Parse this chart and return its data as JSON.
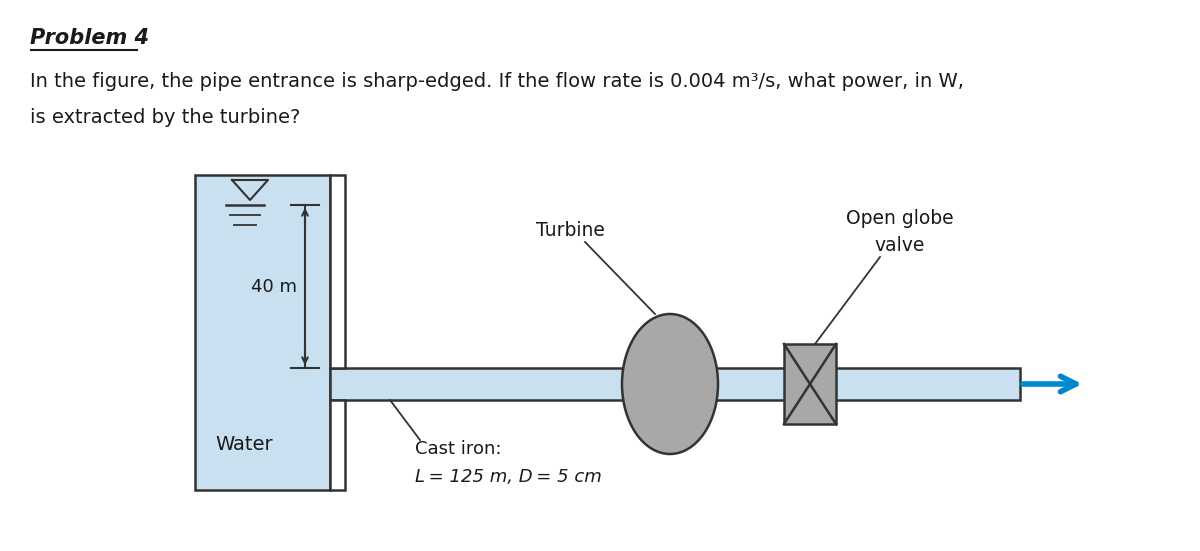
{
  "title": "Problem 4",
  "problem_text_line1": "In the figure, the pipe entrance is sharp-edged. If the flow rate is 0.004 m³/s, what power, in W,",
  "problem_text_line2": "is extracted by the turbine?",
  "water_label": "Water",
  "height_label": "40 m",
  "cast_iron_label_line1": "Cast iron:",
  "cast_iron_label_line2": "L = 125 m, D = 5 cm",
  "turbine_label": "Turbine",
  "globe_valve_label_line1": "Open globe",
  "globe_valve_label_line2": "valve",
  "tank_color": "#c8e0f0",
  "pipe_color": "#c8e0f0",
  "turbine_color": "#a8a8a8",
  "valve_color": "#a8a8a8",
  "arrow_color": "#0088cc",
  "bg_color": "#ffffff",
  "text_color": "#1a1a1a",
  "title_fontsize": 15,
  "body_fontsize": 14,
  "diagram_fontsize": 13
}
